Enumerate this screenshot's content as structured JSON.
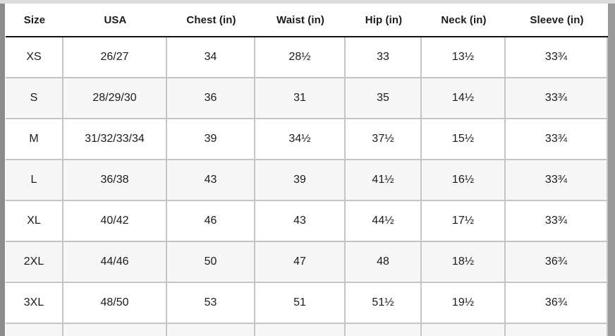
{
  "table": {
    "name": "apparel-size-chart",
    "columns": [
      "Size",
      "USA",
      "Chest (in)",
      "Waist (in)",
      "Hip (in)",
      "Neck (in)",
      "Sleeve (in)"
    ],
    "rows": [
      [
        "XS",
        "26/27",
        "34",
        "28½",
        "33",
        "13½",
        "33¾"
      ],
      [
        "S",
        "28/29/30",
        "36",
        "31",
        "35",
        "14½",
        "33¾"
      ],
      [
        "M",
        "31/32/33/34",
        "39",
        "34½",
        "37½",
        "15½",
        "33¾"
      ],
      [
        "L",
        "36/38",
        "43",
        "39",
        "41½",
        "16½",
        "33¾"
      ],
      [
        "XL",
        "40/42",
        "46",
        "43",
        "44½",
        "17½",
        "33¾"
      ],
      [
        "2XL",
        "44/46",
        "50",
        "47",
        "48",
        "18½",
        "36¾"
      ],
      [
        "3XL",
        "48/50",
        "53",
        "51",
        "51½",
        "19½",
        "36¾"
      ]
    ]
  },
  "colors": {
    "text": "#1b1b1b",
    "grid_line": "#c4c4c4",
    "header_rule": "#141414",
    "row_stripe": "#f7f7f7",
    "scrollbar_left": "#8c8c8c",
    "scrollbar_right": "#9a9a9a",
    "top_band": "#dcdcdc"
  }
}
